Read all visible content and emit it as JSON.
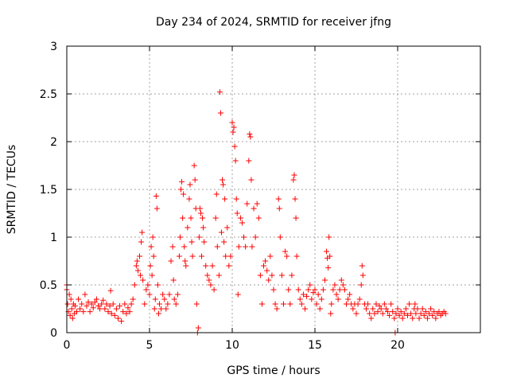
{
  "chart_data": {
    "type": "scatter",
    "title": "Day 234 of 2024, SRMTID for receiver jfng",
    "xlabel": "GPS time / hours",
    "ylabel": "SRMTID / TECUs",
    "xlim": [
      0,
      25
    ],
    "ylim": [
      0,
      3
    ],
    "xticks": [
      0,
      5,
      10,
      15,
      20
    ],
    "yticks": [
      0,
      0.5,
      1,
      1.5,
      2,
      2.5,
      3
    ],
    "xtick_labels": [
      "0",
      "5",
      "10",
      "15",
      "20"
    ],
    "ytick_labels": [
      "0",
      "0.5",
      "1",
      "1.5",
      "2",
      "2.5",
      "3"
    ],
    "grid": true,
    "marker": "+",
    "series": [
      {
        "name": "SRMTID",
        "color": "#ff0000",
        "points": [
          [
            0.0,
            0.5
          ],
          [
            0.0,
            0.45
          ],
          [
            0.05,
            0.3
          ],
          [
            0.1,
            0.22
          ],
          [
            0.15,
            0.4
          ],
          [
            0.2,
            0.18
          ],
          [
            0.25,
            0.35
          ],
          [
            0.3,
            0.25
          ],
          [
            0.35,
            0.15
          ],
          [
            0.4,
            0.3
          ],
          [
            0.45,
            0.2
          ],
          [
            0.5,
            0.28
          ],
          [
            0.6,
            0.22
          ],
          [
            0.7,
            0.35
          ],
          [
            0.8,
            0.25
          ],
          [
            0.9,
            0.3
          ],
          [
            1.0,
            0.22
          ],
          [
            1.1,
            0.4
          ],
          [
            1.2,
            0.28
          ],
          [
            1.3,
            0.32
          ],
          [
            1.4,
            0.22
          ],
          [
            1.5,
            0.3
          ],
          [
            1.6,
            0.26
          ],
          [
            1.7,
            0.32
          ],
          [
            1.8,
            0.35
          ],
          [
            1.9,
            0.28
          ],
          [
            2.0,
            0.25
          ],
          [
            2.1,
            0.3
          ],
          [
            2.2,
            0.34
          ],
          [
            2.3,
            0.25
          ],
          [
            2.4,
            0.3
          ],
          [
            2.5,
            0.22
          ],
          [
            2.6,
            0.28
          ],
          [
            2.65,
            0.44
          ],
          [
            2.7,
            0.2
          ],
          [
            2.8,
            0.3
          ],
          [
            2.9,
            0.18
          ],
          [
            3.0,
            0.25
          ],
          [
            3.1,
            0.15
          ],
          [
            3.2,
            0.28
          ],
          [
            3.3,
            0.12
          ],
          [
            3.4,
            0.22
          ],
          [
            3.5,
            0.3
          ],
          [
            3.6,
            0.2
          ],
          [
            3.7,
            0.26
          ],
          [
            3.8,
            0.22
          ],
          [
            3.9,
            0.3
          ],
          [
            4.0,
            0.35
          ],
          [
            4.1,
            0.5
          ],
          [
            4.2,
            0.7
          ],
          [
            4.25,
            0.75
          ],
          [
            4.3,
            0.65
          ],
          [
            4.4,
            0.8
          ],
          [
            4.45,
            0.6
          ],
          [
            4.5,
            0.95
          ],
          [
            4.55,
            1.05
          ],
          [
            4.6,
            0.55
          ],
          [
            4.7,
            0.3
          ],
          [
            4.8,
            0.45
          ],
          [
            4.9,
            0.5
          ],
          [
            5.0,
            0.4
          ],
          [
            5.05,
            0.7
          ],
          [
            5.1,
            0.9
          ],
          [
            5.15,
            0.6
          ],
          [
            5.2,
            1.0
          ],
          [
            5.25,
            0.8
          ],
          [
            5.3,
            0.25
          ],
          [
            5.35,
            0.35
          ],
          [
            5.4,
            1.43
          ],
          [
            5.45,
            1.3
          ],
          [
            5.5,
            0.5
          ],
          [
            5.55,
            0.2
          ],
          [
            5.6,
            0.3
          ],
          [
            5.7,
            0.25
          ],
          [
            5.8,
            0.4
          ],
          [
            5.9,
            0.35
          ],
          [
            6.0,
            0.25
          ],
          [
            6.1,
            0.3
          ],
          [
            6.2,
            0.4
          ],
          [
            6.3,
            0.75
          ],
          [
            6.4,
            0.9
          ],
          [
            6.45,
            0.55
          ],
          [
            6.5,
            0.35
          ],
          [
            6.6,
            0.3
          ],
          [
            6.7,
            0.4
          ],
          [
            6.8,
            0.8
          ],
          [
            6.85,
            1.0
          ],
          [
            6.9,
            1.5
          ],
          [
            6.95,
            1.58
          ],
          [
            7.0,
            1.2
          ],
          [
            7.05,
            1.45
          ],
          [
            7.1,
            0.9
          ],
          [
            7.15,
            0.75
          ],
          [
            7.2,
            0.7
          ],
          [
            7.3,
            1.1
          ],
          [
            7.4,
            1.4
          ],
          [
            7.45,
            1.55
          ],
          [
            7.5,
            1.2
          ],
          [
            7.55,
            0.95
          ],
          [
            7.6,
            0.8
          ],
          [
            7.7,
            1.75
          ],
          [
            7.75,
            1.6
          ],
          [
            7.8,
            1.3
          ],
          [
            7.85,
            0.3
          ],
          [
            7.9,
            0.0
          ],
          [
            7.95,
            0.05
          ],
          [
            8.0,
            1.0
          ],
          [
            8.05,
            1.3
          ],
          [
            8.1,
            1.25
          ],
          [
            8.15,
            0.8
          ],
          [
            8.2,
            1.2
          ],
          [
            8.25,
            1.1
          ],
          [
            8.3,
            0.95
          ],
          [
            8.4,
            0.7
          ],
          [
            8.5,
            0.6
          ],
          [
            8.6,
            0.55
          ],
          [
            8.7,
            0.5
          ],
          [
            8.8,
            0.7
          ],
          [
            8.9,
            0.45
          ],
          [
            9.0,
            1.2
          ],
          [
            9.05,
            1.45
          ],
          [
            9.1,
            0.9
          ],
          [
            9.2,
            0.6
          ],
          [
            9.25,
            2.52
          ],
          [
            9.3,
            2.3
          ],
          [
            9.35,
            1.05
          ],
          [
            9.4,
            1.6
          ],
          [
            9.45,
            1.55
          ],
          [
            9.5,
            0.95
          ],
          [
            9.55,
            1.4
          ],
          [
            9.6,
            0.8
          ],
          [
            9.7,
            1.1
          ],
          [
            9.8,
            0.7
          ],
          [
            9.9,
            0.8
          ],
          [
            10.0,
            2.2
          ],
          [
            10.05,
            2.1
          ],
          [
            10.1,
            2.15
          ],
          [
            10.15,
            1.95
          ],
          [
            10.2,
            1.8
          ],
          [
            10.25,
            1.4
          ],
          [
            10.3,
            1.25
          ],
          [
            10.35,
            0.4
          ],
          [
            10.4,
            0.9
          ],
          [
            10.5,
            1.2
          ],
          [
            10.6,
            1.15
          ],
          [
            10.7,
            1.0
          ],
          [
            10.8,
            0.9
          ],
          [
            10.9,
            1.35
          ],
          [
            11.0,
            1.8
          ],
          [
            11.05,
            2.08
          ],
          [
            11.1,
            2.05
          ],
          [
            11.15,
            1.6
          ],
          [
            11.2,
            0.9
          ],
          [
            11.3,
            1.3
          ],
          [
            11.4,
            1.0
          ],
          [
            11.5,
            1.35
          ],
          [
            11.6,
            1.2
          ],
          [
            11.7,
            0.6
          ],
          [
            11.8,
            0.3
          ],
          [
            11.9,
            0.7
          ],
          [
            12.0,
            0.75
          ],
          [
            12.1,
            0.65
          ],
          [
            12.2,
            0.55
          ],
          [
            12.3,
            0.8
          ],
          [
            12.4,
            0.6
          ],
          [
            12.5,
            0.45
          ],
          [
            12.6,
            0.3
          ],
          [
            12.7,
            0.25
          ],
          [
            12.8,
            1.4
          ],
          [
            12.85,
            1.3
          ],
          [
            12.9,
            1.0
          ],
          [
            13.0,
            0.6
          ],
          [
            13.1,
            0.3
          ],
          [
            13.2,
            0.85
          ],
          [
            13.3,
            0.8
          ],
          [
            13.4,
            0.45
          ],
          [
            13.5,
            0.3
          ],
          [
            13.6,
            0.6
          ],
          [
            13.7,
            1.6
          ],
          [
            13.75,
            1.65
          ],
          [
            13.8,
            1.4
          ],
          [
            13.85,
            1.2
          ],
          [
            13.9,
            0.8
          ],
          [
            14.0,
            0.45
          ],
          [
            14.1,
            0.35
          ],
          [
            14.2,
            0.3
          ],
          [
            14.3,
            0.4
          ],
          [
            14.4,
            0.25
          ],
          [
            14.5,
            0.38
          ],
          [
            14.6,
            0.45
          ],
          [
            14.7,
            0.5
          ],
          [
            14.8,
            0.35
          ],
          [
            14.9,
            0.42
          ],
          [
            15.0,
            0.45
          ],
          [
            15.1,
            0.3
          ],
          [
            15.2,
            0.4
          ],
          [
            15.3,
            0.25
          ],
          [
            15.4,
            0.35
          ],
          [
            15.5,
            0.45
          ],
          [
            15.6,
            0.55
          ],
          [
            15.7,
            0.85
          ],
          [
            15.75,
            0.78
          ],
          [
            15.8,
            0.68
          ],
          [
            15.85,
            1.0
          ],
          [
            15.9,
            0.8
          ],
          [
            15.95,
            0.2
          ],
          [
            16.0,
            0.3
          ],
          [
            16.1,
            0.45
          ],
          [
            16.2,
            0.5
          ],
          [
            16.3,
            0.4
          ],
          [
            16.4,
            0.35
          ],
          [
            16.5,
            0.45
          ],
          [
            16.6,
            0.55
          ],
          [
            16.7,
            0.5
          ],
          [
            16.8,
            0.45
          ],
          [
            16.9,
            0.3
          ],
          [
            17.0,
            0.35
          ],
          [
            17.1,
            0.4
          ],
          [
            17.2,
            0.3
          ],
          [
            17.3,
            0.25
          ],
          [
            17.4,
            0.3
          ],
          [
            17.5,
            0.2
          ],
          [
            17.6,
            0.3
          ],
          [
            17.7,
            0.35
          ],
          [
            17.8,
            0.5
          ],
          [
            17.85,
            0.7
          ],
          [
            17.9,
            0.6
          ],
          [
            18.0,
            0.3
          ],
          [
            18.1,
            0.25
          ],
          [
            18.2,
            0.3
          ],
          [
            18.3,
            0.2
          ],
          [
            18.4,
            0.15
          ],
          [
            18.5,
            0.25
          ],
          [
            18.6,
            0.2
          ],
          [
            18.7,
            0.3
          ],
          [
            18.8,
            0.22
          ],
          [
            18.9,
            0.28
          ],
          [
            19.0,
            0.25
          ],
          [
            19.1,
            0.2
          ],
          [
            19.2,
            0.3
          ],
          [
            19.3,
            0.25
          ],
          [
            19.4,
            0.22
          ],
          [
            19.5,
            0.18
          ],
          [
            19.6,
            0.3
          ],
          [
            19.7,
            0.22
          ],
          [
            19.8,
            0.15
          ],
          [
            19.85,
            0.0
          ],
          [
            19.9,
            0.2
          ],
          [
            20.0,
            0.25
          ],
          [
            20.1,
            0.18
          ],
          [
            20.2,
            0.22
          ],
          [
            20.3,
            0.15
          ],
          [
            20.4,
            0.2
          ],
          [
            20.5,
            0.25
          ],
          [
            20.6,
            0.18
          ],
          [
            20.7,
            0.3
          ],
          [
            20.8,
            0.2
          ],
          [
            20.9,
            0.15
          ],
          [
            21.0,
            0.25
          ],
          [
            21.05,
            0.3
          ],
          [
            21.1,
            0.2
          ],
          [
            21.2,
            0.25
          ],
          [
            21.3,
            0.15
          ],
          [
            21.4,
            0.2
          ],
          [
            21.5,
            0.25
          ],
          [
            21.6,
            0.18
          ],
          [
            21.7,
            0.22
          ],
          [
            21.8,
            0.15
          ],
          [
            21.9,
            0.2
          ],
          [
            22.0,
            0.25
          ],
          [
            22.1,
            0.18
          ],
          [
            22.2,
            0.22
          ],
          [
            22.3,
            0.15
          ],
          [
            22.4,
            0.2
          ],
          [
            22.5,
            0.22
          ],
          [
            22.6,
            0.18
          ],
          [
            22.7,
            0.2
          ],
          [
            22.8,
            0.22
          ],
          [
            22.9,
            0.2
          ]
        ]
      }
    ]
  }
}
